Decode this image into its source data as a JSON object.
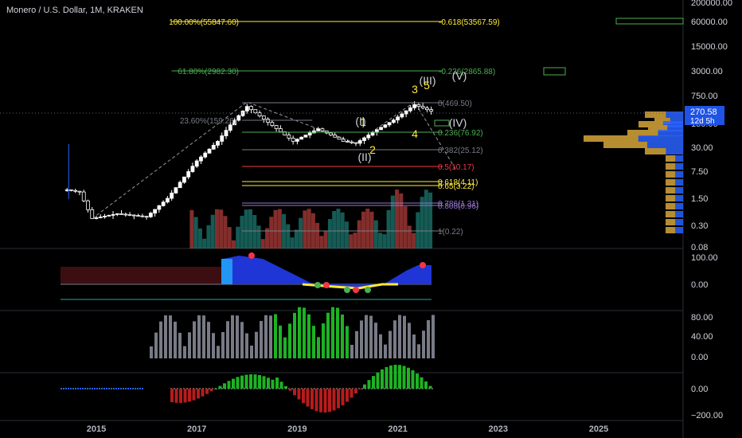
{
  "header": {
    "symbol": "Monero / U.S. Dollar",
    "interval": "1M",
    "exchange": "KRAKEN"
  },
  "price_tag": {
    "price": "270.58",
    "countdown": "12d 5h"
  },
  "colors": {
    "up": "#ffffff",
    "down": "#ffffff",
    "vol_up": "#26a69a",
    "vol_down": "#ef5350",
    "fib_gray": "#787b86",
    "fib_green": "#4caf50",
    "fib_red": "#f23645",
    "fib_yellow": "#ffeb3b",
    "fib_purple": "#9575cd",
    "wave": "#d1d4dc",
    "accent_blue": "#2962ff"
  },
  "chart_data": [
    {
      "type": "candlestick",
      "title": "Monero / U.S. Dollar, 1M, KRAKEN",
      "xlabel": "",
      "ylabel": "",
      "scale": "log",
      "x_ticks": [
        "2015",
        "2017",
        "2019",
        "2021",
        "2023",
        "2025"
      ],
      "y_ticks": [
        "200000.00",
        "60000.00",
        "15000.00",
        "3000.00",
        "750.00",
        "150.00",
        "30.00",
        "7.50",
        "1.50",
        "0.30",
        "0.08"
      ],
      "price_closes_approx": [
        {
          "date": "2014-06",
          "close": 2.5
        },
        {
          "date": "2014-09",
          "close": 2.2
        },
        {
          "date": "2014-12",
          "close": 0.45
        },
        {
          "date": "2015-06",
          "close": 0.6
        },
        {
          "date": "2016-01",
          "close": 0.5
        },
        {
          "date": "2016-06",
          "close": 1.5
        },
        {
          "date": "2017-01",
          "close": 14
        },
        {
          "date": "2017-06",
          "close": 45
        },
        {
          "date": "2017-09",
          "close": 120
        },
        {
          "date": "2018-01",
          "close": 360
        },
        {
          "date": "2018-06",
          "close": 140
        },
        {
          "date": "2018-12",
          "close": 45
        },
        {
          "date": "2019-06",
          "close": 95
        },
        {
          "date": "2019-12",
          "close": 45
        },
        {
          "date": "2020-03",
          "close": 40
        },
        {
          "date": "2020-08",
          "close": 90
        },
        {
          "date": "2020-12",
          "close": 160
        },
        {
          "date": "2021-05",
          "close": 400
        },
        {
          "date": "2021-09",
          "close": 270.58
        }
      ],
      "fib_levels": [
        {
          "label": "100.00%(55847.60)"
        },
        {
          "label": "-0.618(53567.59)"
        },
        {
          "label": "61.80%(2982.30)"
        },
        {
          "label": "-0.236(2865.88)"
        },
        {
          "label": "0(469.50)"
        },
        {
          "label": "23.60%(159.26)"
        },
        {
          "label": "0.236(76.92)"
        },
        {
          "label": "0.382(25.12)"
        },
        {
          "label": "0.5(10.17)"
        },
        {
          "label": "0.618(4.11)"
        },
        {
          "label": "0.65(3.22)"
        },
        {
          "label": "0.786(1.31)"
        },
        {
          "label": "0.808(0.96)"
        },
        {
          "label": "1(0.22)"
        }
      ],
      "wave_labels": [
        "(I)",
        "(II)",
        "(III)",
        "(IV)",
        "(V)",
        "1",
        "2",
        "3",
        "4",
        "5"
      ]
    },
    {
      "type": "area",
      "name": "oscillator",
      "y_ticks": [
        "100.00",
        "0.00"
      ]
    },
    {
      "type": "bar",
      "name": "momentum",
      "y_ticks": [
        "80.00",
        "40.00",
        "0.00"
      ]
    },
    {
      "type": "bar",
      "name": "histogram",
      "y_ticks": [
        "0.00",
        "−200.00"
      ]
    }
  ]
}
